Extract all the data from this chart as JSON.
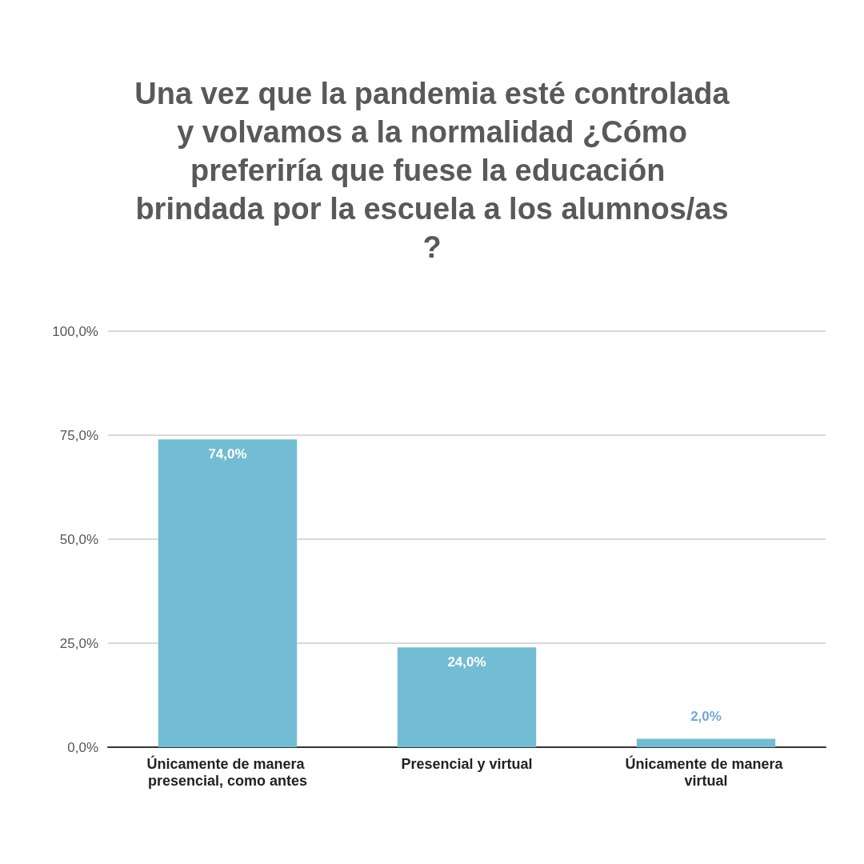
{
  "chart_data": {
    "type": "bar",
    "title": "Una vez que la pandemia esté controlada y volvamos a la normalidad ¿Cómo preferiría que fuese la educación brindada por la escuela a los alumnos/as?",
    "categories": [
      "Únicamente de manera presencial, como antes",
      "Presencial y virtual",
      "Únicamente de manera virtual"
    ],
    "values": [
      74,
      24,
      2
    ],
    "value_labels": [
      "74,0%",
      "24,0%",
      "2,0%"
    ],
    "color": "#72bcd4",
    "ylim": [
      0,
      100
    ],
    "yticks": [
      {
        "value": 0,
        "label": "0,0%"
      },
      {
        "value": 25,
        "label": "25,0%"
      },
      {
        "value": 50,
        "label": "50,0%"
      },
      {
        "value": 75,
        "label": "75,0%"
      },
      {
        "value": 100,
        "label": "100,0%"
      }
    ],
    "grid": "y"
  }
}
